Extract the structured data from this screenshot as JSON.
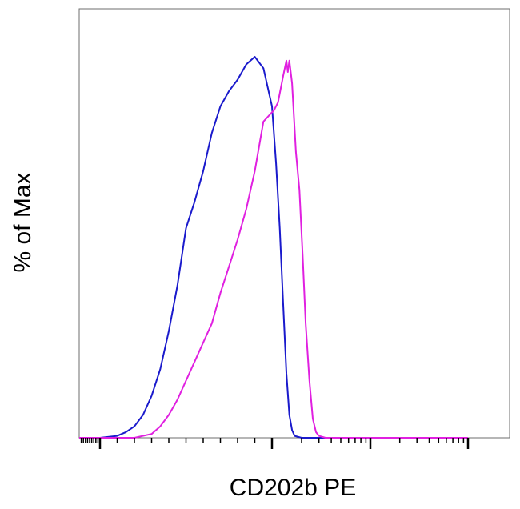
{
  "chart_data": {
    "type": "line",
    "title": "",
    "xlabel": "CD202b PE",
    "ylabel": "% of Max",
    "x_scale": "biexponential",
    "xlim": [
      -1000,
      100000
    ],
    "ylim": [
      0,
      100
    ],
    "grid": false,
    "legend": "none",
    "major_ticks": [
      0,
      1000,
      10000,
      100000
    ],
    "series": [
      {
        "color": "#1a1acc",
        "points": [
          [
            -1000,
            0
          ],
          [
            -500,
            0
          ],
          [
            0,
            0
          ],
          [
            100,
            0.5
          ],
          [
            150,
            1.5
          ],
          [
            200,
            3
          ],
          [
            250,
            6
          ],
          [
            300,
            11
          ],
          [
            350,
            18
          ],
          [
            400,
            28
          ],
          [
            450,
            40
          ],
          [
            500,
            55
          ],
          [
            550,
            62
          ],
          [
            600,
            70
          ],
          [
            650,
            80
          ],
          [
            700,
            87
          ],
          [
            750,
            91
          ],
          [
            800,
            94
          ],
          [
            850,
            98
          ],
          [
            900,
            100
          ],
          [
            950,
            97
          ],
          [
            1000,
            87
          ],
          [
            1100,
            72
          ],
          [
            1200,
            55
          ],
          [
            1300,
            35
          ],
          [
            1400,
            17
          ],
          [
            1500,
            6
          ],
          [
            1600,
            2
          ],
          [
            1700,
            0.5
          ],
          [
            2000,
            0
          ],
          [
            5000,
            0
          ],
          [
            100000,
            0
          ]
        ]
      },
      {
        "color": "#e020e0",
        "points": [
          [
            -1000,
            0
          ],
          [
            0,
            0
          ],
          [
            200,
            0
          ],
          [
            300,
            1
          ],
          [
            350,
            3
          ],
          [
            400,
            6
          ],
          [
            450,
            10
          ],
          [
            500,
            15
          ],
          [
            550,
            20
          ],
          [
            600,
            25
          ],
          [
            650,
            30
          ],
          [
            700,
            38
          ],
          [
            750,
            45
          ],
          [
            800,
            52
          ],
          [
            850,
            60
          ],
          [
            900,
            70
          ],
          [
            950,
            83
          ],
          [
            1050,
            86
          ],
          [
            1150,
            88
          ],
          [
            1300,
            95
          ],
          [
            1400,
            99
          ],
          [
            1450,
            96
          ],
          [
            1500,
            99
          ],
          [
            1600,
            93
          ],
          [
            1750,
            75
          ],
          [
            1900,
            65
          ],
          [
            2050,
            48
          ],
          [
            2200,
            30
          ],
          [
            2400,
            15
          ],
          [
            2600,
            5
          ],
          [
            2800,
            1.5
          ],
          [
            3000,
            0.5
          ],
          [
            3500,
            0
          ],
          [
            10000,
            0
          ],
          [
            100000,
            0
          ]
        ]
      }
    ]
  }
}
